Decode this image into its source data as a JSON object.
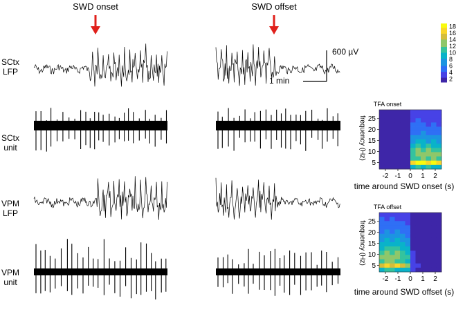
{
  "annotations": {
    "onset_label": "SWD onset",
    "offset_label": "SWD offset",
    "arrow_color": "#e0201b"
  },
  "row_labels": [
    {
      "line1": "SCtx",
      "line2": "LFP"
    },
    {
      "line1": "SCtx",
      "line2": "unit"
    },
    {
      "line1": "VPM",
      "line2": "LFP"
    },
    {
      "line1": "VPM",
      "line2": "unit"
    }
  ],
  "scale_bar": {
    "vertical_label": "600 µV",
    "horizontal_label": "1 min"
  },
  "colorbar": {
    "ticks": [
      "18",
      "16",
      "14",
      "12",
      "10",
      "8",
      "6",
      "4",
      "2"
    ],
    "min": 1,
    "max": 19,
    "colormap": [
      "#3e26a8",
      "#4742e6",
      "#2f6ff5",
      "#1c94e1",
      "#09b3c9",
      "#34c39e",
      "#8ec76a",
      "#d4bd3b",
      "#f9d52a",
      "#f9fb0e"
    ]
  },
  "chart_data": [
    {
      "type": "heatmap",
      "title": "TFA onset",
      "xlabel": "time around SWD onset (s)",
      "ylabel": "frequency (Hz)",
      "x_ticks": [
        "-2",
        "-1",
        "0",
        "1",
        "2"
      ],
      "y_ticks": [
        "25",
        "20",
        "15",
        "10",
        "5"
      ],
      "xlim": [
        -2.5,
        2.5
      ],
      "ylim": [
        2,
        29
      ],
      "cols": 12,
      "rows": 14,
      "values": [
        [
          1,
          1,
          1,
          1,
          1,
          1,
          2,
          2,
          2,
          2,
          2,
          2
        ],
        [
          1,
          1,
          1,
          1,
          1,
          1,
          3,
          3,
          2,
          3,
          2,
          2
        ],
        [
          1,
          1,
          1,
          1,
          1,
          1,
          3,
          4,
          3,
          3,
          3,
          3
        ],
        [
          1,
          1,
          1,
          1,
          1,
          1,
          4,
          4,
          4,
          3,
          4,
          3
        ],
        [
          1,
          1,
          1,
          1,
          1,
          1,
          4,
          5,
          4,
          5,
          4,
          4
        ],
        [
          1,
          1,
          1,
          1,
          1,
          1,
          5,
          5,
          6,
          5,
          5,
          5
        ],
        [
          1,
          1,
          1,
          1,
          1,
          1,
          6,
          7,
          6,
          7,
          6,
          6
        ],
        [
          1,
          1,
          1,
          1,
          1,
          1,
          7,
          8,
          8,
          7,
          8,
          7
        ],
        [
          1,
          1,
          1,
          1,
          1,
          1,
          8,
          10,
          9,
          10,
          9,
          8
        ],
        [
          1,
          1,
          1,
          1,
          1,
          1,
          10,
          12,
          11,
          12,
          11,
          10
        ],
        [
          1,
          1,
          1,
          1,
          1,
          1,
          11,
          13,
          13,
          12,
          13,
          12
        ],
        [
          1,
          1,
          1,
          1,
          1,
          1,
          10,
          11,
          12,
          11,
          12,
          10
        ],
        [
          1,
          1,
          1,
          1,
          1,
          1,
          17,
          18,
          18,
          17,
          18,
          17
        ],
        [
          1,
          1,
          1,
          1,
          1,
          1,
          9,
          10,
          9,
          10,
          9,
          9
        ]
      ]
    },
    {
      "type": "heatmap",
      "title": "TFA offset",
      "xlabel": "time around SWD offset (s)",
      "ylabel": "frequency (Hz)",
      "x_ticks": [
        "-2",
        "-1",
        "0",
        "1",
        "2"
      ],
      "y_ticks": [
        "25",
        "20",
        "15",
        "10",
        "5"
      ],
      "xlim": [
        -2.5,
        2.5
      ],
      "ylim": [
        2,
        29
      ],
      "cols": 12,
      "rows": 14,
      "values": [
        [
          3,
          3,
          3,
          3,
          3,
          2,
          1,
          1,
          1,
          1,
          1,
          1
        ],
        [
          4,
          3,
          4,
          3,
          3,
          3,
          1,
          1,
          1,
          1,
          1,
          1
        ],
        [
          4,
          4,
          4,
          4,
          4,
          3,
          1,
          1,
          1,
          1,
          1,
          1
        ],
        [
          5,
          5,
          4,
          5,
          4,
          4,
          1,
          1,
          1,
          1,
          1,
          1
        ],
        [
          5,
          6,
          5,
          6,
          5,
          4,
          1,
          1,
          1,
          1,
          1,
          1
        ],
        [
          6,
          6,
          7,
          6,
          6,
          5,
          1,
          1,
          1,
          1,
          1,
          1
        ],
        [
          7,
          8,
          7,
          8,
          7,
          6,
          1,
          1,
          1,
          1,
          1,
          1
        ],
        [
          8,
          9,
          9,
          8,
          8,
          7,
          1,
          1,
          1,
          1,
          1,
          1
        ],
        [
          9,
          10,
          11,
          10,
          9,
          8,
          1,
          1,
          1,
          1,
          1,
          1
        ],
        [
          11,
          12,
          11,
          12,
          10,
          9,
          2,
          1,
          1,
          1,
          1,
          1
        ],
        [
          12,
          13,
          13,
          12,
          11,
          10,
          2,
          1,
          1,
          1,
          1,
          1
        ],
        [
          11,
          12,
          12,
          11,
          10,
          9,
          2,
          1,
          1,
          1,
          1,
          1
        ],
        [
          14,
          16,
          15,
          16,
          14,
          12,
          3,
          2,
          1,
          1,
          1,
          1
        ],
        [
          9,
          10,
          10,
          9,
          9,
          8,
          2,
          1,
          1,
          1,
          1,
          1
        ]
      ]
    }
  ]
}
